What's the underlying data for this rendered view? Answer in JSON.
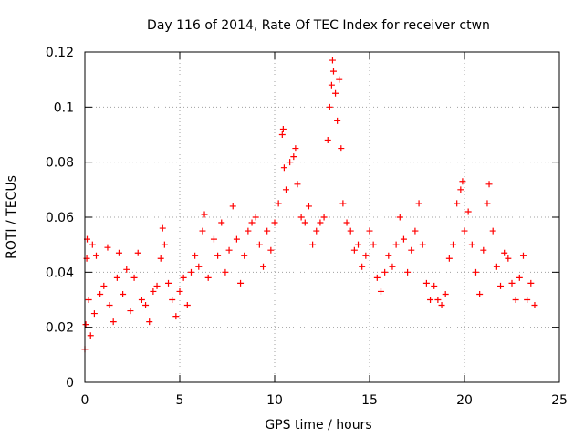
{
  "chart_data": {
    "type": "scatter",
    "title": "Day 116 of 2014, Rate Of TEC Index for receiver ctwn",
    "xlabel": "GPS time / hours",
    "ylabel": "ROTI / TECUs",
    "xlim": [
      0,
      25
    ],
    "ylim": [
      0,
      0.12
    ],
    "xticks": [
      0,
      5,
      10,
      15,
      20,
      25
    ],
    "xtick_labels": [
      "0",
      "5",
      "10",
      "15",
      "20",
      "25"
    ],
    "yticks": [
      0,
      0.02,
      0.04,
      0.06,
      0.08,
      0.1,
      0.12
    ],
    "ytick_labels": [
      "0",
      "0.02",
      "0.04",
      "0.06",
      "0.08",
      "0.1",
      "0.12"
    ],
    "grid": true,
    "marker": "+",
    "series": [
      {
        "name": "ROTI",
        "color": "#ff0000",
        "points": [
          [
            0.0,
            0.012
          ],
          [
            0.05,
            0.021
          ],
          [
            0.1,
            0.045
          ],
          [
            0.12,
            0.052
          ],
          [
            0.2,
            0.03
          ],
          [
            0.3,
            0.017
          ],
          [
            0.4,
            0.05
          ],
          [
            0.5,
            0.025
          ],
          [
            0.6,
            0.046
          ],
          [
            0.8,
            0.032
          ],
          [
            1.0,
            0.035
          ],
          [
            1.2,
            0.049
          ],
          [
            1.3,
            0.028
          ],
          [
            1.5,
            0.022
          ],
          [
            1.7,
            0.038
          ],
          [
            1.8,
            0.047
          ],
          [
            2.0,
            0.032
          ],
          [
            2.2,
            0.041
          ],
          [
            2.4,
            0.026
          ],
          [
            2.6,
            0.038
          ],
          [
            2.8,
            0.047
          ],
          [
            3.0,
            0.03
          ],
          [
            3.2,
            0.028
          ],
          [
            3.4,
            0.022
          ],
          [
            3.6,
            0.033
          ],
          [
            3.8,
            0.035
          ],
          [
            4.0,
            0.045
          ],
          [
            4.1,
            0.056
          ],
          [
            4.2,
            0.05
          ],
          [
            4.4,
            0.036
          ],
          [
            4.6,
            0.03
          ],
          [
            4.8,
            0.024
          ],
          [
            5.0,
            0.033
          ],
          [
            5.2,
            0.038
          ],
          [
            5.4,
            0.028
          ],
          [
            5.6,
            0.04
          ],
          [
            5.8,
            0.046
          ],
          [
            6.0,
            0.042
          ],
          [
            6.2,
            0.055
          ],
          [
            6.3,
            0.061
          ],
          [
            6.5,
            0.038
          ],
          [
            6.8,
            0.052
          ],
          [
            7.0,
            0.046
          ],
          [
            7.2,
            0.058
          ],
          [
            7.4,
            0.04
          ],
          [
            7.6,
            0.048
          ],
          [
            7.8,
            0.064
          ],
          [
            8.0,
            0.052
          ],
          [
            8.2,
            0.036
          ],
          [
            8.4,
            0.046
          ],
          [
            8.6,
            0.055
          ],
          [
            8.8,
            0.058
          ],
          [
            9.0,
            0.06
          ],
          [
            9.2,
            0.05
          ],
          [
            9.4,
            0.042
          ],
          [
            9.6,
            0.055
          ],
          [
            9.8,
            0.048
          ],
          [
            10.0,
            0.058
          ],
          [
            10.2,
            0.065
          ],
          [
            10.4,
            0.09
          ],
          [
            10.45,
            0.092
          ],
          [
            10.5,
            0.078
          ],
          [
            10.6,
            0.07
          ],
          [
            10.8,
            0.08
          ],
          [
            11.0,
            0.082
          ],
          [
            11.1,
            0.085
          ],
          [
            11.2,
            0.072
          ],
          [
            11.4,
            0.06
          ],
          [
            11.6,
            0.058
          ],
          [
            11.8,
            0.064
          ],
          [
            12.0,
            0.05
          ],
          [
            12.2,
            0.055
          ],
          [
            12.4,
            0.058
          ],
          [
            12.6,
            0.06
          ],
          [
            12.8,
            0.088
          ],
          [
            12.9,
            0.1
          ],
          [
            13.0,
            0.108
          ],
          [
            13.05,
            0.117
          ],
          [
            13.1,
            0.113
          ],
          [
            13.2,
            0.105
          ],
          [
            13.3,
            0.095
          ],
          [
            13.4,
            0.11
          ],
          [
            13.5,
            0.085
          ],
          [
            13.6,
            0.065
          ],
          [
            13.8,
            0.058
          ],
          [
            14.0,
            0.055
          ],
          [
            14.2,
            0.048
          ],
          [
            14.4,
            0.05
          ],
          [
            14.6,
            0.042
          ],
          [
            14.8,
            0.046
          ],
          [
            15.0,
            0.055
          ],
          [
            15.2,
            0.05
          ],
          [
            15.4,
            0.038
          ],
          [
            15.6,
            0.033
          ],
          [
            15.8,
            0.04
          ],
          [
            16.0,
            0.046
          ],
          [
            16.2,
            0.042
          ],
          [
            16.4,
            0.05
          ],
          [
            16.6,
            0.06
          ],
          [
            16.8,
            0.052
          ],
          [
            17.0,
            0.04
          ],
          [
            17.2,
            0.048
          ],
          [
            17.4,
            0.055
          ],
          [
            17.6,
            0.065
          ],
          [
            17.8,
            0.05
          ],
          [
            18.0,
            0.036
          ],
          [
            18.2,
            0.03
          ],
          [
            18.4,
            0.035
          ],
          [
            18.6,
            0.03
          ],
          [
            18.8,
            0.028
          ],
          [
            19.0,
            0.032
          ],
          [
            19.2,
            0.045
          ],
          [
            19.4,
            0.05
          ],
          [
            19.6,
            0.065
          ],
          [
            19.8,
            0.07
          ],
          [
            19.9,
            0.073
          ],
          [
            20.0,
            0.055
          ],
          [
            20.2,
            0.062
          ],
          [
            20.4,
            0.05
          ],
          [
            20.6,
            0.04
          ],
          [
            20.8,
            0.032
          ],
          [
            21.0,
            0.048
          ],
          [
            21.2,
            0.065
          ],
          [
            21.3,
            0.072
          ],
          [
            21.5,
            0.055
          ],
          [
            21.7,
            0.042
          ],
          [
            21.9,
            0.035
          ],
          [
            22.1,
            0.047
          ],
          [
            22.3,
            0.045
          ],
          [
            22.5,
            0.036
          ],
          [
            22.7,
            0.03
          ],
          [
            22.9,
            0.038
          ],
          [
            23.1,
            0.046
          ],
          [
            23.3,
            0.03
          ],
          [
            23.5,
            0.036
          ],
          [
            23.7,
            0.028
          ]
        ]
      }
    ]
  }
}
